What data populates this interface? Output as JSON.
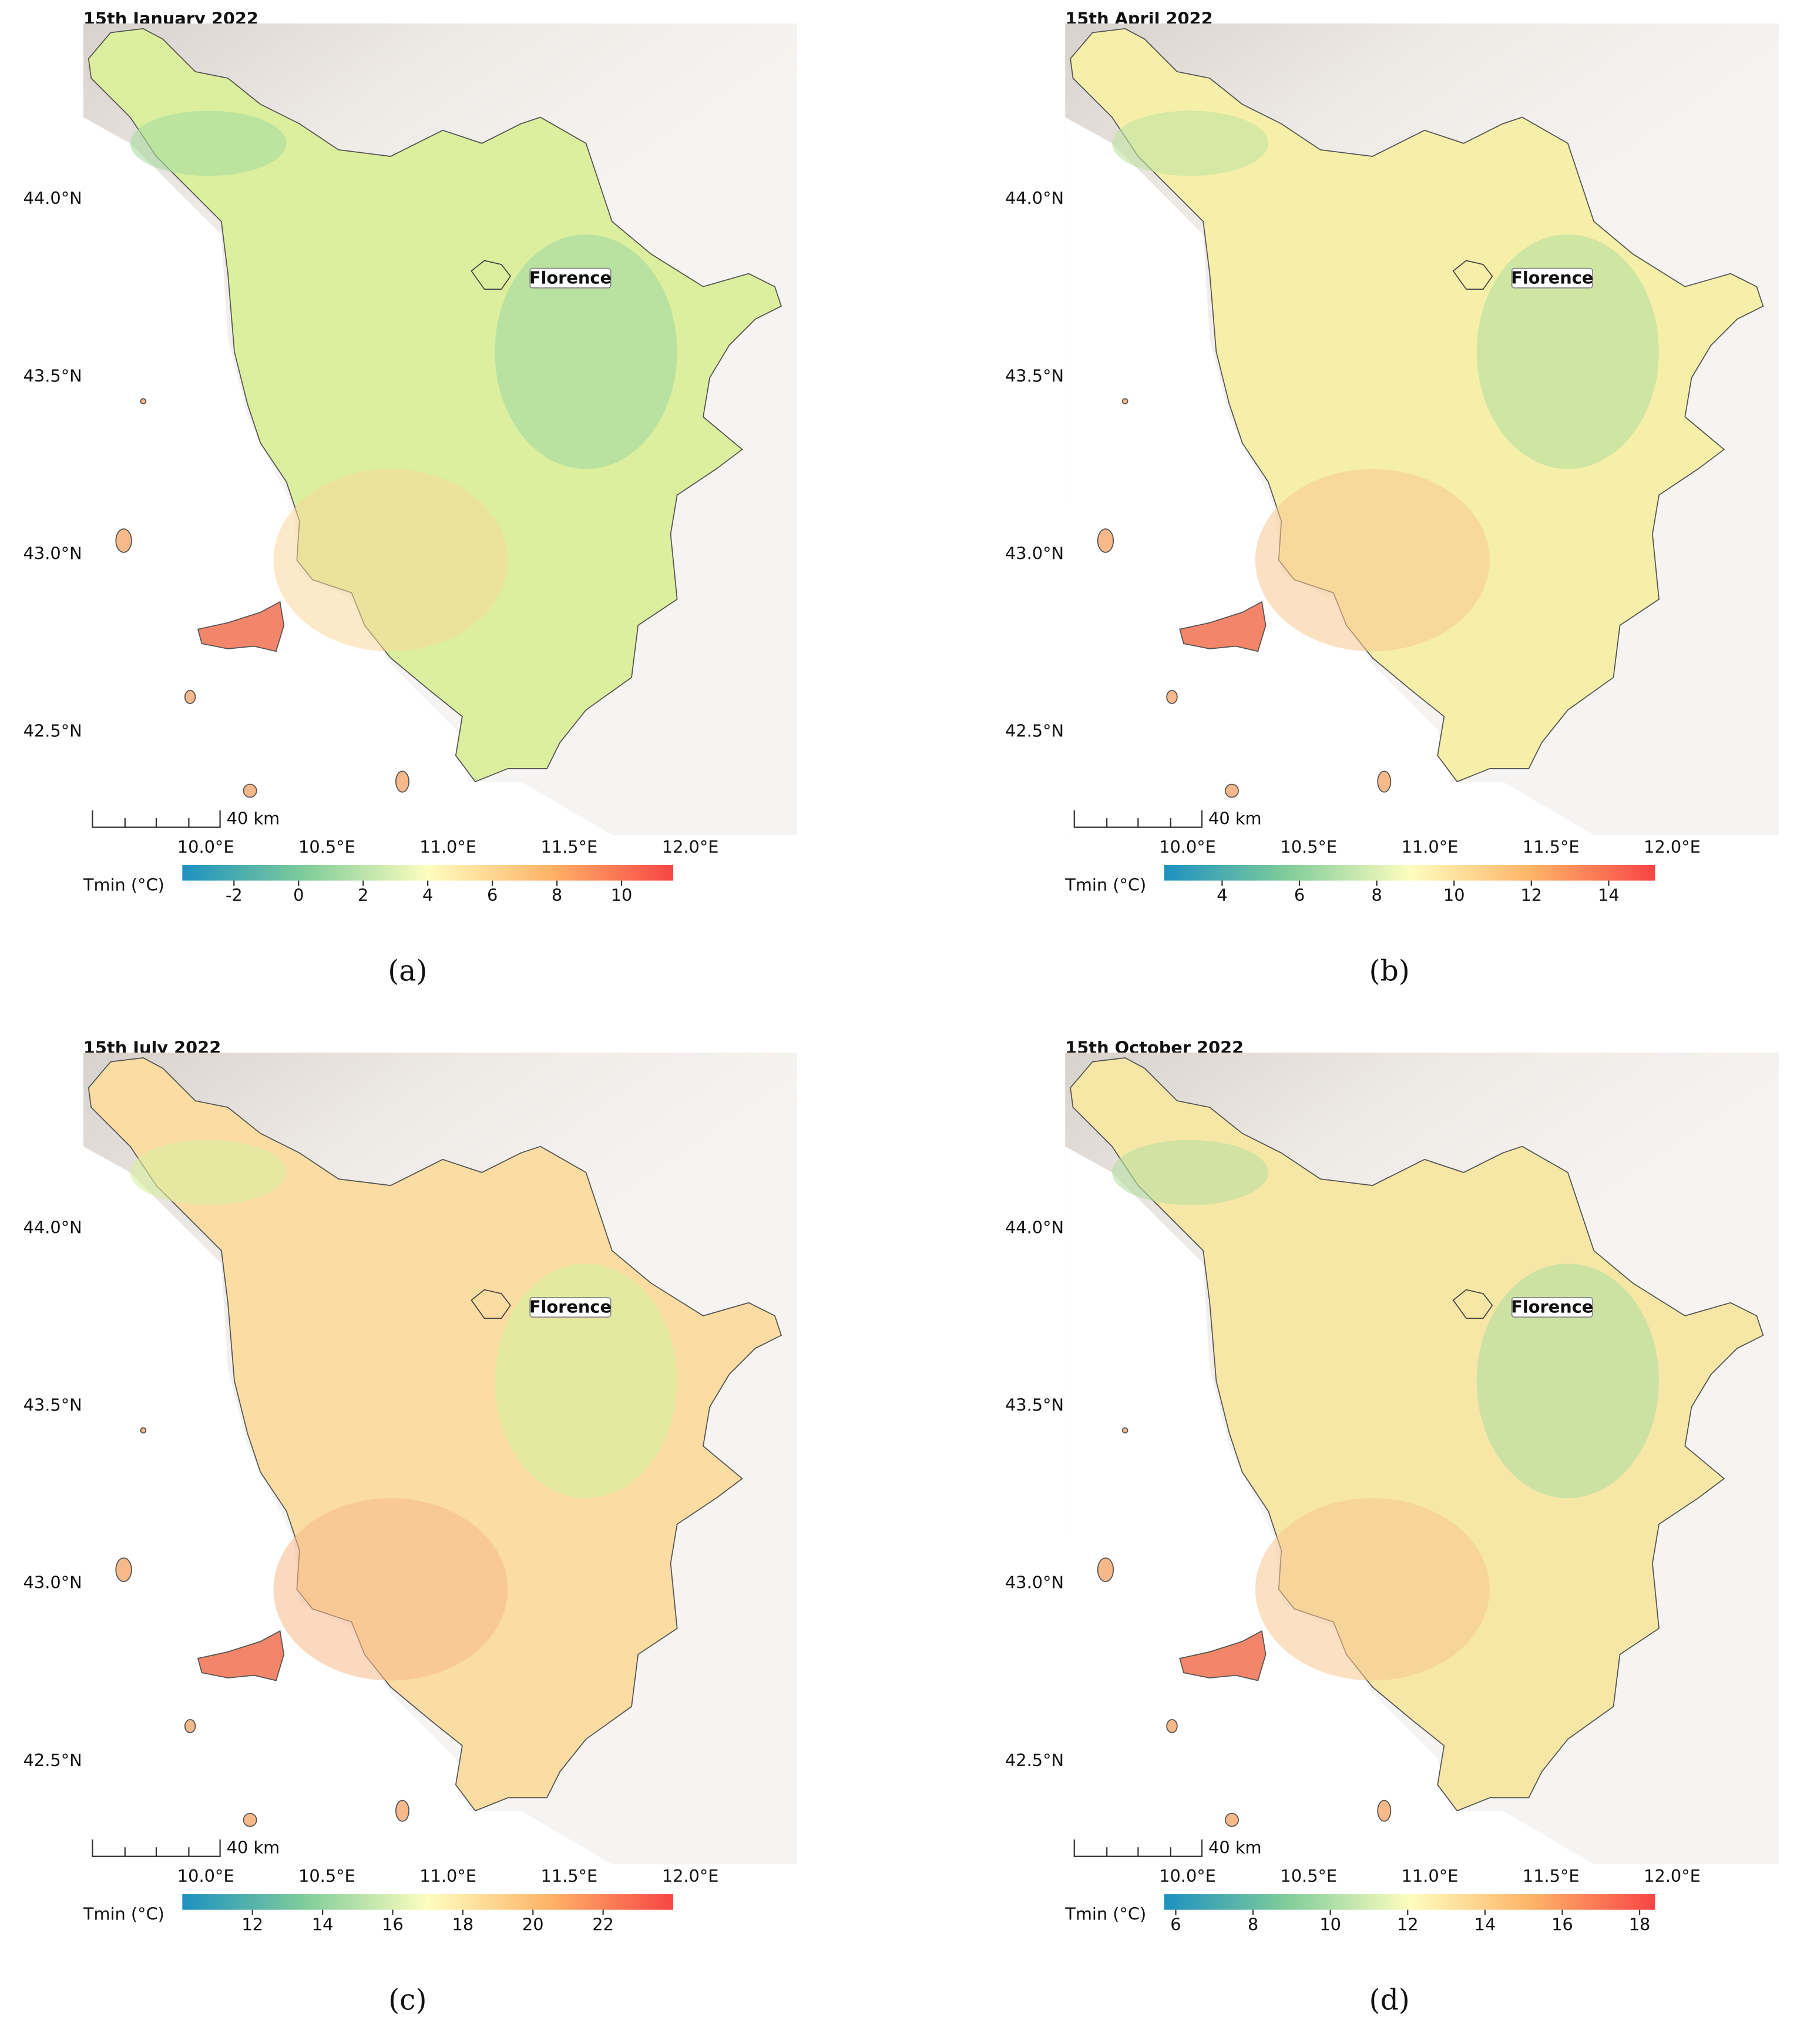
{
  "panels": [
    {
      "title": "15th January 2022",
      "caption": "(a)",
      "city": "Florence",
      "scale_label": "40 km",
      "lon_lim": [
        9.495,
        12.44
      ],
      "lat_lim": [
        42.21,
        44.495
      ],
      "lon_ticks": [
        {
          "value": 10,
          "label": "10.0°E"
        },
        {
          "value": 10.5,
          "label": "10.5°E"
        },
        {
          "value": 11,
          "label": "11.0°E"
        },
        {
          "value": 11.5,
          "label": "11.5°E"
        },
        {
          "value": 12,
          "label": "12.0°E"
        }
      ],
      "lat_ticks": [
        {
          "value": 42.5,
          "label": "42.5°N"
        },
        {
          "value": 43,
          "label": "43.0°N"
        },
        {
          "value": 43.5,
          "label": "43.5°N"
        },
        {
          "value": 44,
          "label": "44.0°N"
        }
      ],
      "colorbar": {
        "label": "Tmin (°C)",
        "lim": [
          -3.6,
          11.6
        ],
        "ticks": [
          -2,
          0,
          2,
          4,
          6,
          8,
          10
        ]
      }
    },
    {
      "title": "15th April 2022",
      "caption": "(b)",
      "city": "Florence",
      "scale_label": "40 km",
      "lon_lim": [
        9.495,
        12.44
      ],
      "lat_lim": [
        42.21,
        44.495
      ],
      "lon_ticks": [
        {
          "value": 10,
          "label": "10.0°E"
        },
        {
          "value": 10.5,
          "label": "10.5°E"
        },
        {
          "value": 11,
          "label": "11.0°E"
        },
        {
          "value": 11.5,
          "label": "11.5°E"
        },
        {
          "value": 12,
          "label": "12.0°E"
        }
      ],
      "lat_ticks": [
        {
          "value": 42.5,
          "label": "42.5°N"
        },
        {
          "value": 43,
          "label": "43.0°N"
        },
        {
          "value": 43.5,
          "label": "43.5°N"
        },
        {
          "value": 44,
          "label": "44.0°N"
        }
      ],
      "colorbar": {
        "label": "Tmin (°C)",
        "lim": [
          2.5,
          15.2
        ],
        "ticks": [
          4,
          6,
          8,
          10,
          12,
          14
        ]
      }
    },
    {
      "title": "15th July 2022",
      "caption": "(c)",
      "city": "Florence",
      "scale_label": "40 km",
      "lon_lim": [
        9.495,
        12.44
      ],
      "lat_lim": [
        42.21,
        44.495
      ],
      "lon_ticks": [
        {
          "value": 10,
          "label": "10.0°E"
        },
        {
          "value": 10.5,
          "label": "10.5°E"
        },
        {
          "value": 11,
          "label": "11.0°E"
        },
        {
          "value": 11.5,
          "label": "11.5°E"
        },
        {
          "value": 12,
          "label": "12.0°E"
        }
      ],
      "lat_ticks": [
        {
          "value": 42.5,
          "label": "42.5°N"
        },
        {
          "value": 43,
          "label": "43.0°N"
        },
        {
          "value": 43.5,
          "label": "43.5°N"
        },
        {
          "value": 44,
          "label": "44.0°N"
        }
      ],
      "colorbar": {
        "label": "Tmin (°C)",
        "lim": [
          10,
          24
        ],
        "ticks": [
          12,
          14,
          16,
          18,
          20,
          22
        ]
      }
    },
    {
      "title": "15th October 2022",
      "caption": "(d)",
      "city": "Florence",
      "scale_label": "40 km",
      "lon_lim": [
        9.495,
        12.44
      ],
      "lat_lim": [
        42.21,
        44.495
      ],
      "lon_ticks": [
        {
          "value": 10,
          "label": "10.0°E"
        },
        {
          "value": 10.5,
          "label": "10.5°E"
        },
        {
          "value": 11,
          "label": "11.0°E"
        },
        {
          "value": 11.5,
          "label": "11.5°E"
        },
        {
          "value": 12,
          "label": "12.0°E"
        }
      ],
      "lat_ticks": [
        {
          "value": 42.5,
          "label": "42.5°N"
        },
        {
          "value": 43,
          "label": "43.0°N"
        },
        {
          "value": 43.5,
          "label": "43.5°N"
        },
        {
          "value": 44,
          "label": "44.0°N"
        }
      ],
      "colorbar": {
        "label": "Tmin (°C)",
        "lim": [
          5.7,
          18.4
        ],
        "ticks": [
          6,
          8,
          10,
          12,
          14,
          16,
          18
        ]
      }
    }
  ]
}
